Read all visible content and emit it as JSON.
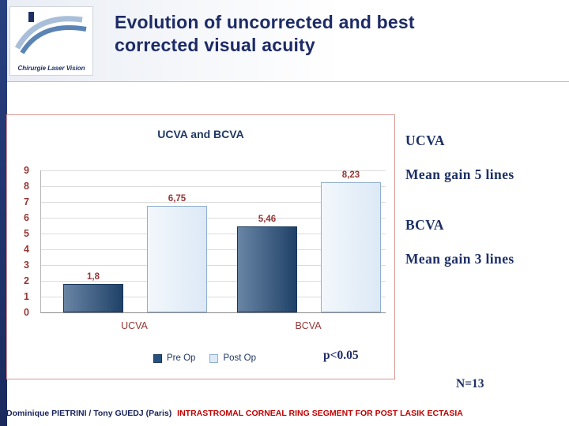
{
  "slide": {
    "title": "Evolution of uncorrected and best corrected visual acuity",
    "logo_text": "Chirurgie Laser Vision"
  },
  "chart_data": {
    "type": "bar",
    "title": "UCVA and BCVA",
    "categories": [
      "UCVA",
      "BCVA"
    ],
    "series": [
      {
        "name": "Pre Op",
        "values": [
          1.8,
          5.46
        ],
        "value_labels": [
          "1,8",
          "5,46"
        ],
        "color": "#27507e"
      },
      {
        "name": "Post Op",
        "values": [
          6.75,
          8.23
        ],
        "value_labels": [
          "6,75",
          "8,23"
        ],
        "color": "#dce9f6"
      }
    ],
    "ylim": [
      0,
      9
    ],
    "ytick_step": 1,
    "grid": true,
    "legend_position": "bottom"
  },
  "annotations": {
    "ucva_label": "UCVA",
    "ucva_gain": "Mean gain 5 lines",
    "bcva_label": "BCVA",
    "bcva_gain": "Mean gain 3 lines",
    "p_value": "p<0.05",
    "sample_size": "N=13"
  },
  "footer": {
    "authors": "Dominique PIETRINI / Tony GUEDJ (Paris)",
    "presentation_title": "INTRASTROMAL CORNEAL RING SEGMENT FOR POST LASIK ECTASIA"
  },
  "colors": {
    "navy": "#1d2b66",
    "maroon": "#953735",
    "footer_red": "#c00000",
    "pre_op_bar": "#27507e",
    "post_op_bar": "#dce9f6",
    "panel_border": "#d99694"
  }
}
